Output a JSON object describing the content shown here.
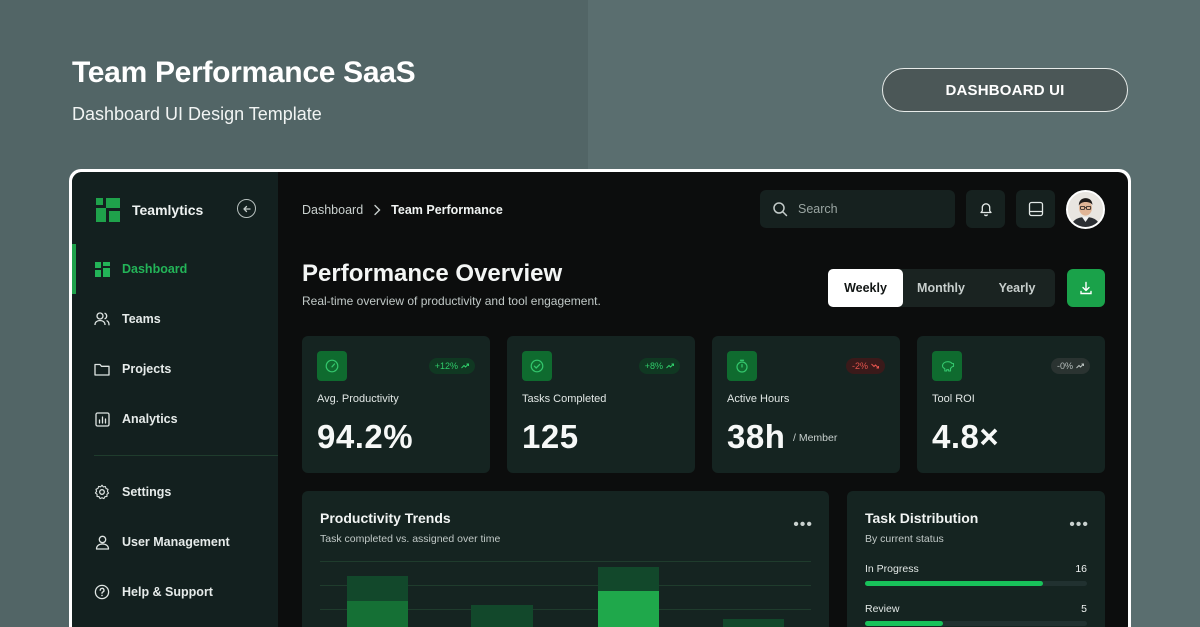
{
  "hero": {
    "title": "Team Performance SaaS",
    "subtitle": "Dashboard UI Design Template",
    "pill": "DASHBOARD UI"
  },
  "brand": {
    "name": "Teamlytics"
  },
  "sidebar": {
    "items": [
      {
        "label": "Dashboard",
        "icon": "dashboard-grid-icon",
        "active": true
      },
      {
        "label": "Teams",
        "icon": "users-icon",
        "active": false
      },
      {
        "label": "Projects",
        "icon": "folder-icon",
        "active": false
      },
      {
        "label": "Analytics",
        "icon": "bar-chart-icon",
        "active": false
      },
      {
        "label": "Settings",
        "icon": "gear-icon",
        "active": false
      },
      {
        "label": "User Management",
        "icon": "user-icon",
        "active": false
      },
      {
        "label": "Help & Support",
        "icon": "help-circle-icon",
        "active": false
      }
    ]
  },
  "breadcrumb": {
    "root": "Dashboard",
    "current": "Team Performance"
  },
  "search": {
    "placeholder": "Search"
  },
  "header": {
    "title": "Performance Overview",
    "subtitle": "Real-time overview of productivity and tool engagement."
  },
  "range": {
    "options": [
      "Weekly",
      "Monthly",
      "Yearly"
    ],
    "selected": "Weekly"
  },
  "kpis": [
    {
      "label": "Avg. Productivity",
      "value": "94.2%",
      "unit": "",
      "badge": "+12%",
      "trend": "up",
      "icon": "gauge-icon"
    },
    {
      "label": "Tasks Completed",
      "value": "125",
      "unit": "",
      "badge": "+8%",
      "trend": "up",
      "icon": "check-circle-icon"
    },
    {
      "label": "Active Hours",
      "value": "38h",
      "unit": "/ Member",
      "badge": "-2%",
      "trend": "down",
      "icon": "stopwatch-icon"
    },
    {
      "label": "Tool ROI",
      "value": "4.8×",
      "unit": "",
      "badge": "-0%",
      "trend": "flat",
      "icon": "piggy-bank-icon"
    }
  ],
  "trends": {
    "title": "Productivity Trends",
    "subtitle": "Task completed vs. assigned over time"
  },
  "distribution": {
    "title": "Task Distribution",
    "subtitle": "By current status",
    "rows": [
      {
        "label": "In Progress",
        "count": "16",
        "fill": 0.8
      },
      {
        "label": "Review",
        "count": "5",
        "fill": 0.35
      }
    ]
  },
  "colors": {
    "accent": "#1fa24b",
    "accent_bright": "#18c25a",
    "app_bg": "#0c0d0d",
    "panel_bg": "#152421",
    "sidebar_bg": "#13201f",
    "down": "#e4544d"
  }
}
